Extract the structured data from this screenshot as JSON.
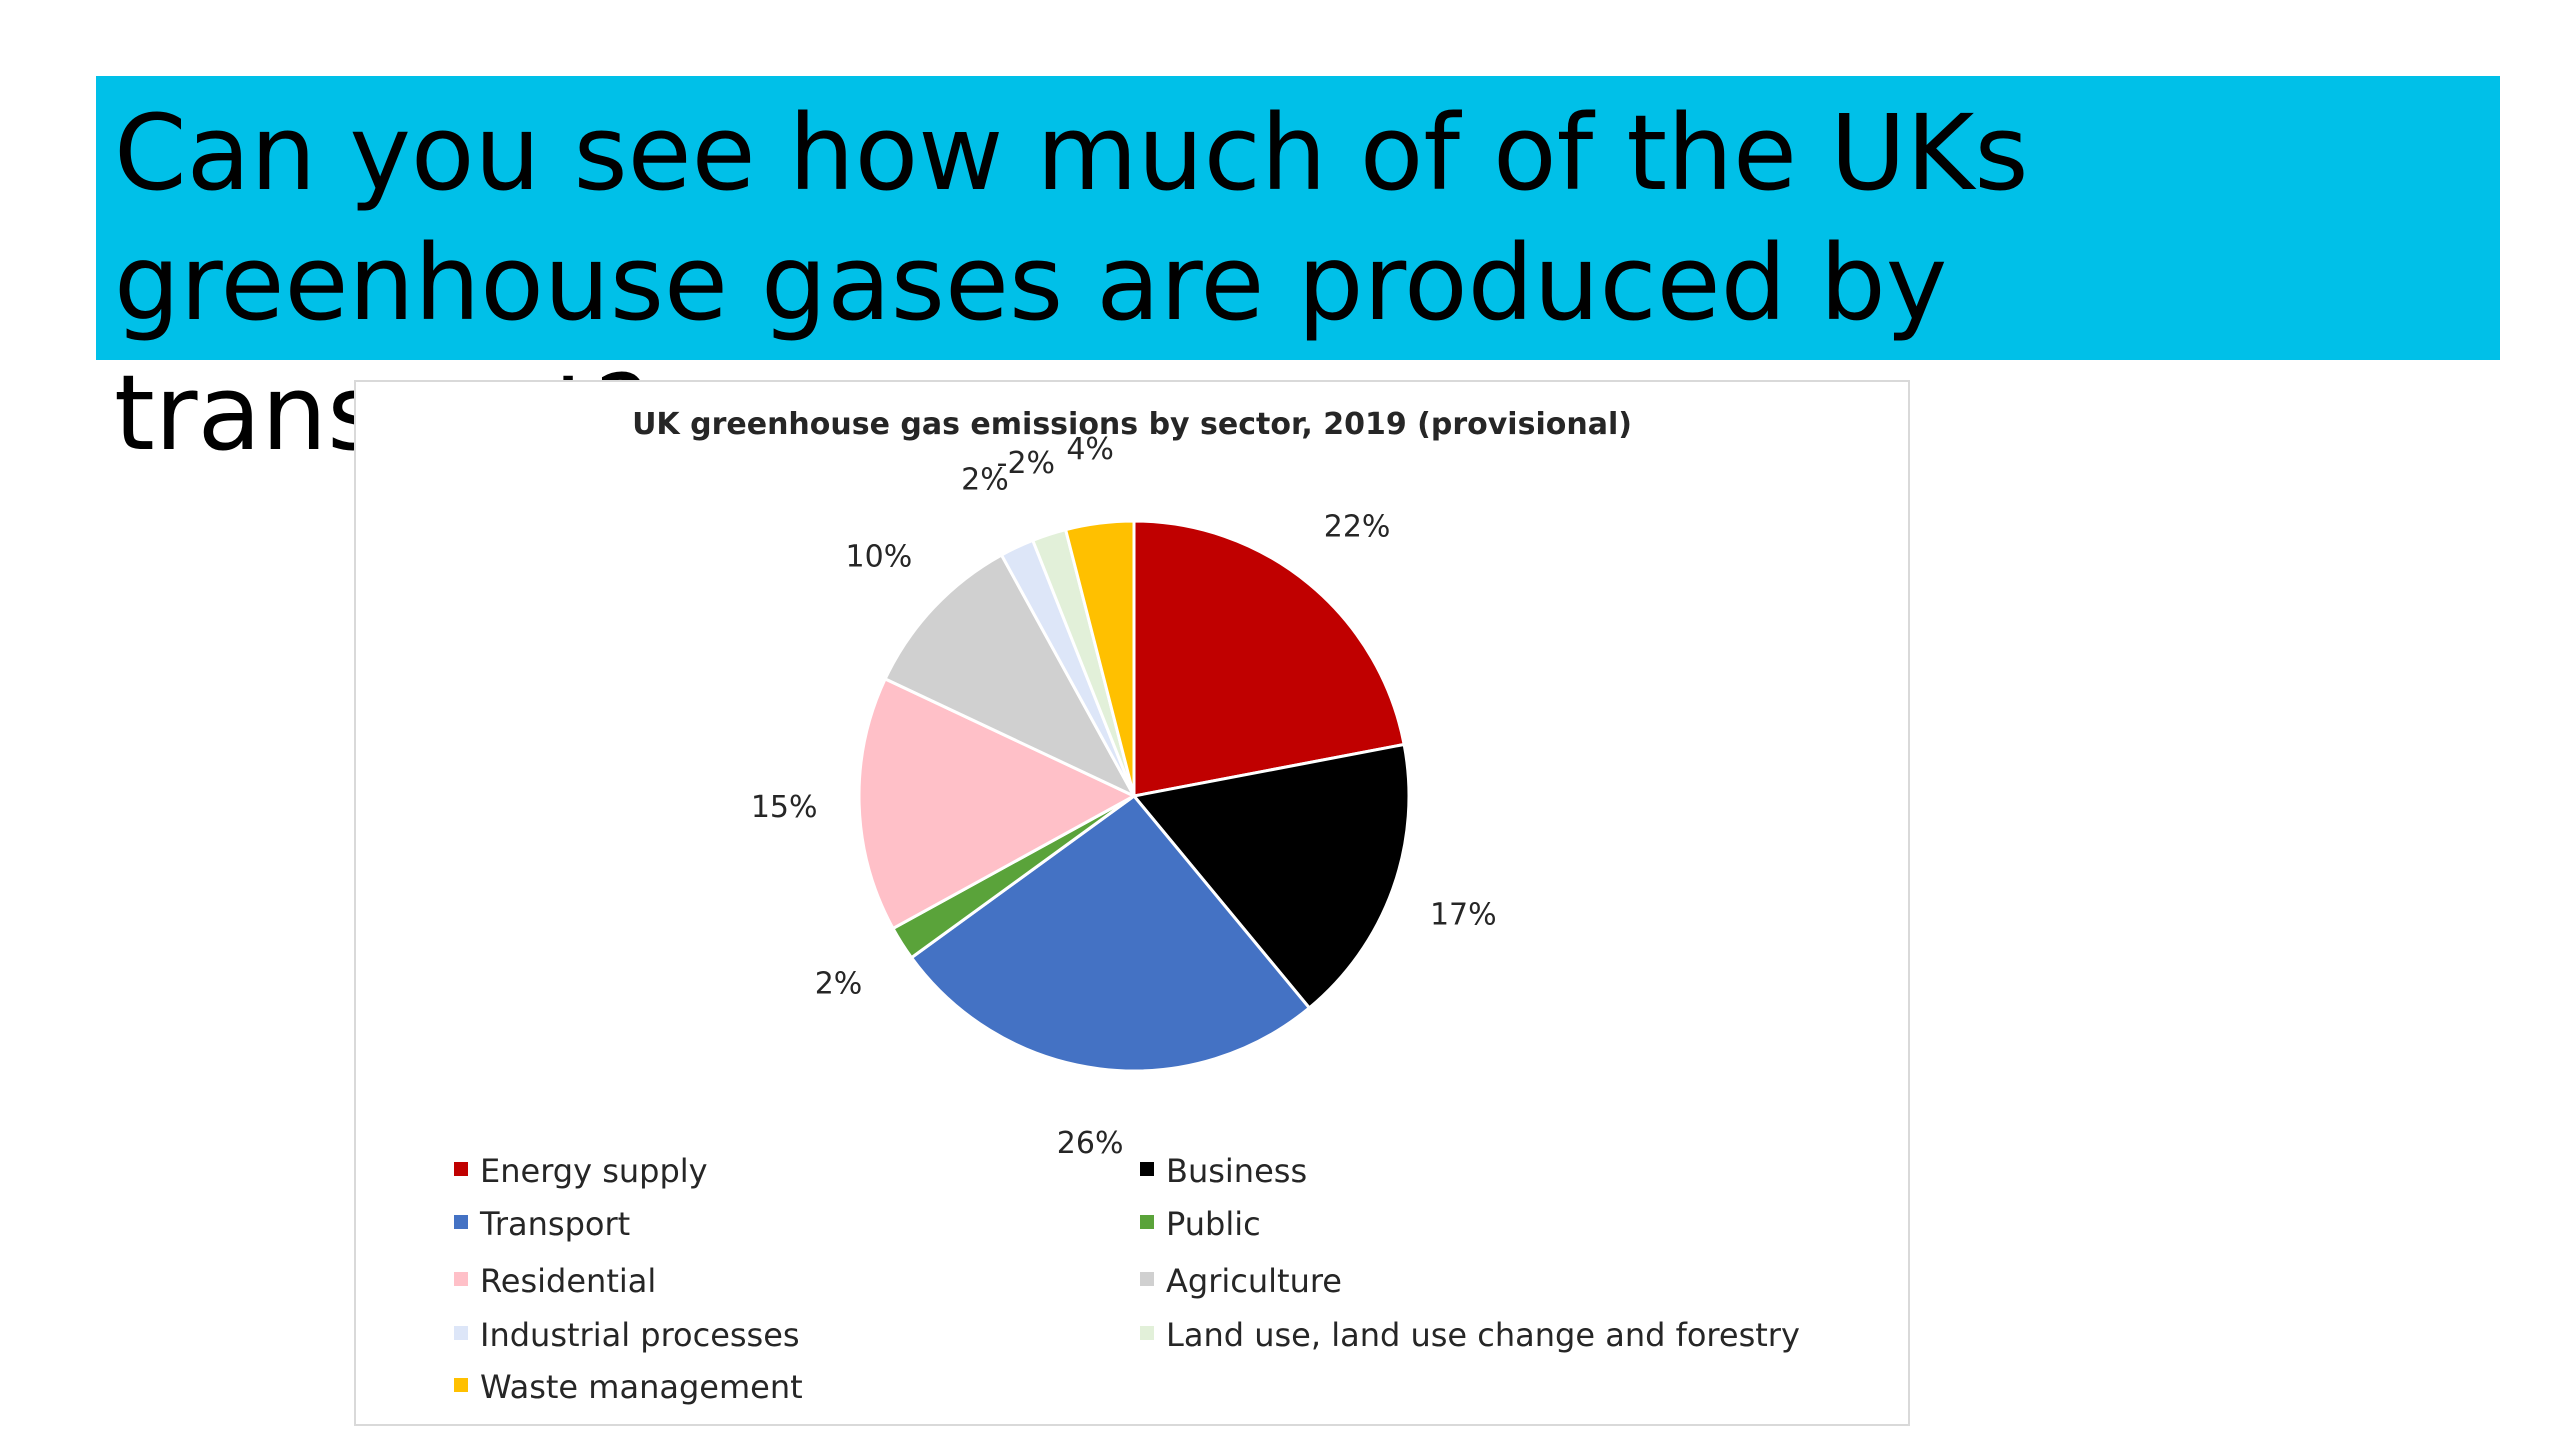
{
  "slide": {
    "title": "Can you see how much of of the UKs greenhouse gases are produced by transport?",
    "banner_color": "#00c0e8"
  },
  "chart_data": {
    "type": "pie",
    "title": "UK greenhouse gas emissions by sector, 2019 (provisional)",
    "legend_position": "bottom",
    "slices": [
      {
        "name": "Energy supply",
        "value": 22,
        "label": "22%",
        "color": "#c00000"
      },
      {
        "name": "Business",
        "value": 17,
        "label": "17%",
        "color": "#000000"
      },
      {
        "name": "Transport",
        "value": 26,
        "label": "26%",
        "color": "#4472c4"
      },
      {
        "name": "Public",
        "value": 2,
        "label": "2%",
        "color": "#5aa33a"
      },
      {
        "name": "Residential",
        "value": 15,
        "label": "15%",
        "color": "#ffc0c8"
      },
      {
        "name": "Agriculture",
        "value": 10,
        "label": "10%",
        "color": "#d0d0d0"
      },
      {
        "name": "Industrial processes",
        "value": 2,
        "label": "2%",
        "color": "#dde6f8"
      },
      {
        "name": "Land use, land use change and forestry",
        "value": -2,
        "label": "-2%",
        "color": "#e2f0d9"
      },
      {
        "name": "Waste management",
        "value": 4,
        "label": "4%",
        "color": "#ffc000"
      }
    ]
  }
}
